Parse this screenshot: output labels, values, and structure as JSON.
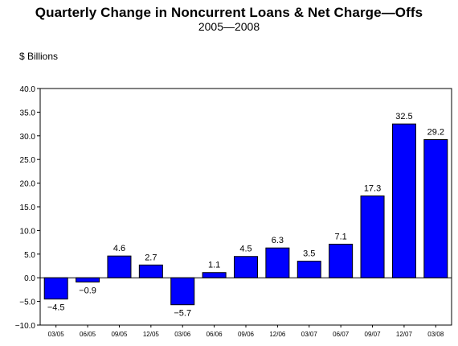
{
  "chart_data": {
    "type": "bar",
    "title": "Quarterly Change in Noncurrent Loans & Net Charge—Offs",
    "subtitle": "2005—2008",
    "ylabel": "$ Billions",
    "xlabel": "",
    "categories": [
      "03/05",
      "06/05",
      "09/05",
      "12/05",
      "03/06",
      "06/06",
      "09/06",
      "12/06",
      "03/07",
      "06/07",
      "09/07",
      "12/07",
      "03/08"
    ],
    "values": [
      -4.5,
      -0.9,
      4.6,
      2.7,
      -5.7,
      1.1,
      4.5,
      6.3,
      3.5,
      7.1,
      17.3,
      32.5,
      29.2
    ],
    "data_labels": [
      "−4.5",
      "−0.9",
      "4.6",
      "2.7",
      "−5.7",
      "1.1",
      "4.5",
      "6.3",
      "3.5",
      "7.1",
      "17.3",
      "32.5",
      "29.2"
    ],
    "yticks": [
      -10,
      -5,
      0,
      5,
      10,
      15,
      20,
      25,
      30,
      35,
      40
    ],
    "ytick_labels": [
      "−10.0",
      "−5.0",
      "0.0",
      "5.0",
      "10.0",
      "15.0",
      "20.0",
      "25.0",
      "30.0",
      "35.0",
      "40.0"
    ],
    "ylim": [
      -10,
      40
    ],
    "bar_color": "#0000ff",
    "grid": false
  }
}
